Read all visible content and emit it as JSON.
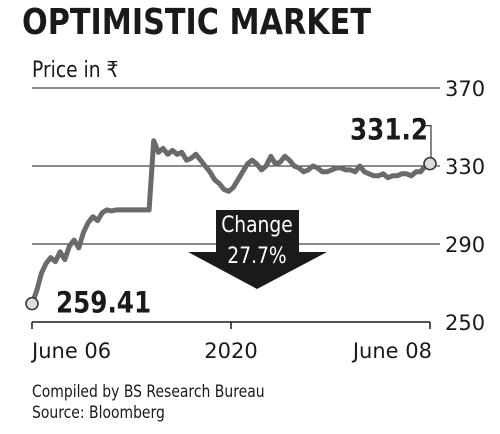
{
  "chart_data": {
    "type": "line",
    "title": "OPTIMISTIC MARKET",
    "ylabel": "Price in ₹",
    "ylim": [
      250,
      370
    ],
    "yticks": [
      250,
      290,
      330,
      370
    ],
    "xtick_labels": [
      "June 06",
      "2020",
      "June 08"
    ],
    "start_label": "259.41",
    "end_label": "331.2",
    "change_label": "Change",
    "change_value": "27.7%",
    "series": [
      {
        "values": [
          259.41,
          266,
          275,
          280,
          283,
          281,
          286,
          282,
          289,
          292,
          288,
          296,
          301,
          304,
          302,
          306,
          307.5,
          307,
          307.5,
          307.5,
          307.5,
          307.5,
          307.5,
          307.5,
          307.5,
          307.5,
          343,
          337,
          339,
          336,
          338,
          336,
          337,
          333,
          334,
          336,
          333,
          330,
          327,
          323,
          321,
          318,
          317,
          319,
          323,
          327,
          331,
          333,
          331,
          328,
          330,
          335,
          331,
          332,
          335,
          333,
          330,
          329,
          327,
          328,
          330,
          329,
          327,
          327,
          328,
          329,
          329,
          328,
          328,
          327,
          330,
          327,
          326,
          325,
          325,
          326,
          324,
          325,
          325,
          326,
          326,
          325,
          327,
          327,
          330,
          331.2
        ]
      }
    ]
  },
  "footer": {
    "compiled": "Compiled by BS Research Bureau",
    "source": "Source: Bloomberg"
  }
}
